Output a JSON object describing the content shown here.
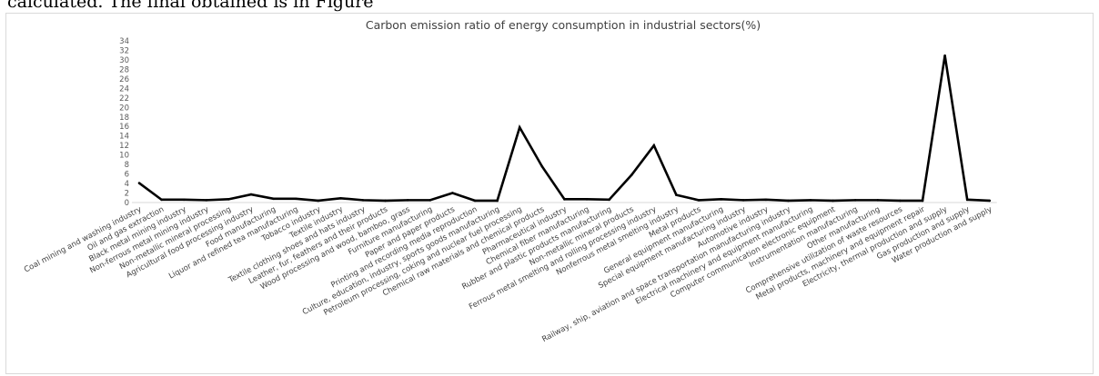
{
  "caption_fragment": "calculated. The final obtained is in Figure",
  "chart_data": {
    "type": "line",
    "title": "Carbon emission ratio of energy consumption in industrial sectors(%)",
    "xlabel": "",
    "ylabel": "",
    "ylim": [
      0,
      34
    ],
    "yticks": [
      0,
      2,
      4,
      6,
      8,
      10,
      12,
      14,
      16,
      18,
      20,
      22,
      24,
      26,
      28,
      30,
      32,
      34
    ],
    "grid": false,
    "legend": "none",
    "line_color": "#000000",
    "categories": [
      "Coal mining and washing industry",
      "Oil and gas extraction",
      "Black metal mining industry",
      "Non-ferrous metal mining industry",
      "Non-metallic mineral processing",
      "Agricultural food processing industry",
      "Food manufacturing",
      "Liquor and refined tea manufacturing",
      "Tobacco industry",
      "Textile industry",
      "Textile clothing shoes and hats industry",
      "Leather, fur, feathers and their products",
      "Wood processing and wood, bamboo, grass",
      "Furniture manufacturing",
      "Paper and paper products",
      "Printing and recording media reproduction",
      "Culture, education, industry, sports goods manufacturing",
      "Petroleum processing, coking and nuclear fuel processing",
      "Chemical raw materials and chemical products",
      "Pharmaceutical industry",
      "Chemical fiber manufacturing",
      "Rubber and plastic products manufacturing",
      "Non-metallic mineral products",
      "Ferrous metal smelting and rolling processing industry",
      "Nonferrous metal smelting industry",
      "Metal products",
      "General equipment manufacturing",
      "Special equipment manufacturing industry",
      "Automotive industry",
      "Railway, ship, aviation and space transportation manufacturing industry",
      "Electrical machinery and equipment manufacturing",
      "Computer communication electronic equipment",
      "Instrumentation manufacturing",
      "Other manufacturing",
      "Comprehensive utilization of waste resources",
      "Metal products, machinery and equipment repair",
      "Electricity, thermal production and supply",
      "Gas production and supply",
      "Water production and supply"
    ],
    "series": [
      {
        "values": [
          4.1,
          0.6,
          0.6,
          0.5,
          0.7,
          1.7,
          0.8,
          0.8,
          0.4,
          0.9,
          0.5,
          0.4,
          0.5,
          0.5,
          2.0,
          0.4,
          0.4,
          15.8,
          7.6,
          0.7,
          0.7,
          0.6,
          5.8,
          12.0,
          1.6,
          0.5,
          0.7,
          0.5,
          0.6,
          0.4,
          0.5,
          0.4,
          0.5,
          0.5,
          0.4,
          0.4,
          30.9,
          0.6,
          0.4
        ]
      }
    ]
  }
}
